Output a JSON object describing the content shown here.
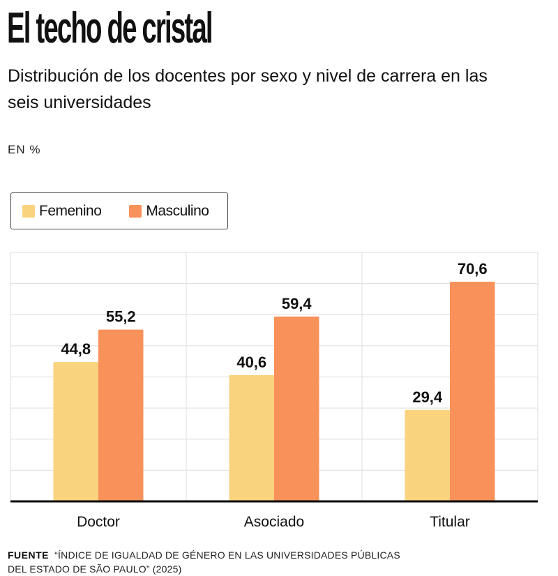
{
  "header": {
    "title": "El techo de cristal",
    "subtitle": "Distribución de los docentes por sexo y nivel de carrera en las seis universidades",
    "unit": "EN  %"
  },
  "legend": [
    {
      "label": "Femenino",
      "color": "#fad37e"
    },
    {
      "label": "Masculino",
      "color": "#f8915a"
    }
  ],
  "footer": {
    "source_label": "FUENTE",
    "source_text": "“ÍNDICE DE IGUALDAD DE GÉNERO EN LAS UNIVERSIDADES PÚBLICAS",
    "source_text2": "DEL ESTADO DE SÃO PAULO” (2025)"
  },
  "chart_data": {
    "type": "bar",
    "title": "El techo de cristal",
    "subtitle": "Distribución de los docentes por sexo y nivel de carrera en las seis universidades",
    "ylabel": "EN %",
    "xlabel": "",
    "categories": [
      "Doctor",
      "Asociado",
      "Titular"
    ],
    "series": [
      {
        "name": "Femenino",
        "color": "#fad37e",
        "values": [
          44.8,
          40.6,
          29.4
        ],
        "labels": [
          "44,8",
          "40,6",
          "29,4"
        ]
      },
      {
        "name": "Masculino",
        "color": "#f8915a",
        "values": [
          55.2,
          59.4,
          70.6
        ],
        "labels": [
          "55,2",
          "59,4",
          "70,6"
        ]
      }
    ],
    "ylim": [
      0,
      80
    ],
    "ytick_step": 10,
    "grid": true,
    "legend_position": "top-left"
  }
}
